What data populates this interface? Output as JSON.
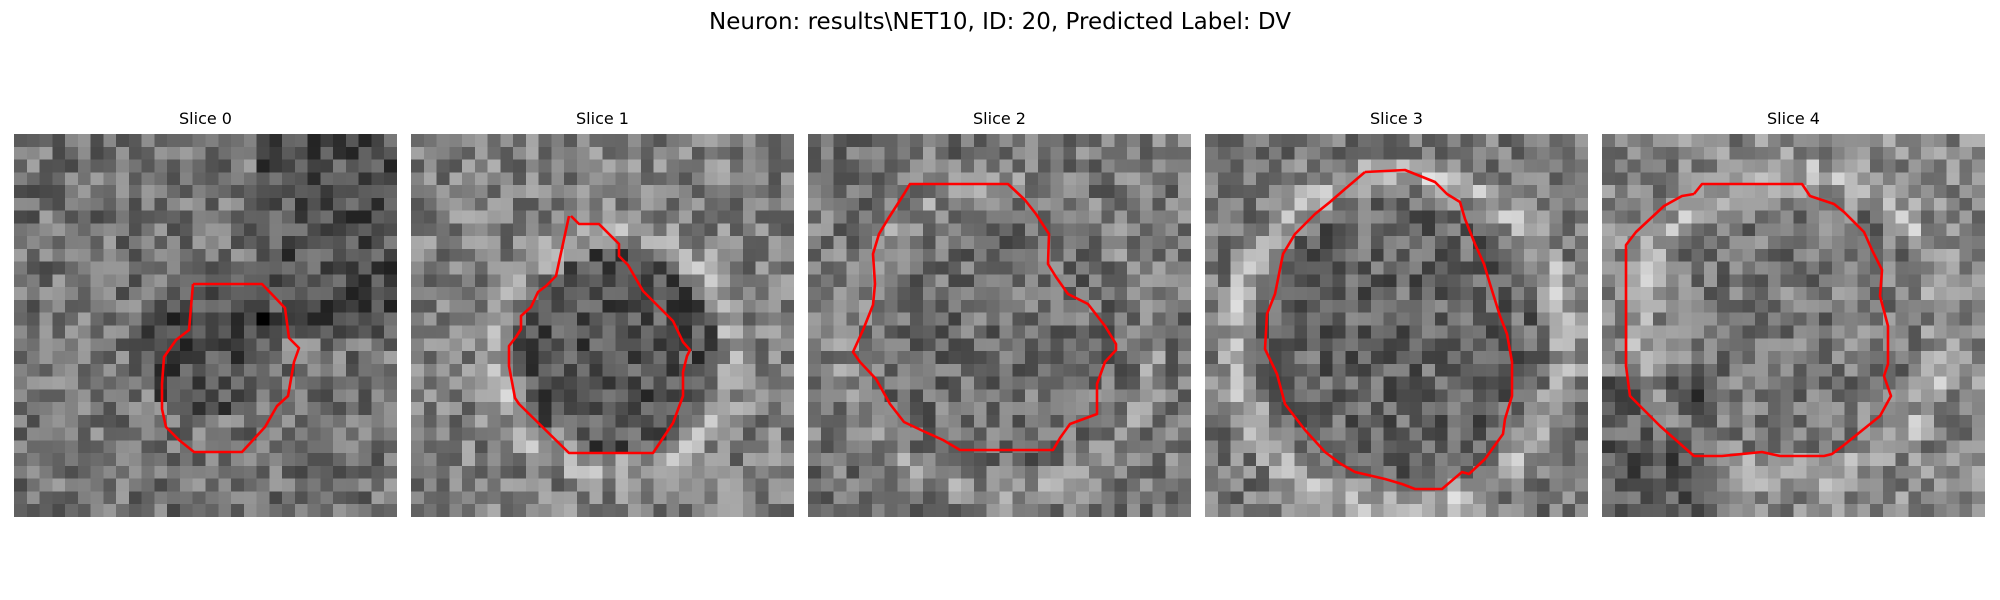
{
  "figure": {
    "title": "Neuron: results\\NET10, ID: 20, Predicted Label: DV"
  },
  "panels": [
    {
      "title": "Slice 0",
      "image": "grayscale microscopy patch",
      "overlay": "red neuron contour"
    },
    {
      "title": "Slice 1",
      "image": "grayscale microscopy patch",
      "overlay": "red neuron contour"
    },
    {
      "title": "Slice 2",
      "image": "grayscale microscopy patch",
      "overlay": "red neuron contour"
    },
    {
      "title": "Slice 3",
      "image": "grayscale microscopy patch",
      "overlay": "red neuron contour"
    },
    {
      "title": "Slice 4",
      "image": "grayscale microscopy patch",
      "overlay": "red neuron contour"
    }
  ],
  "colors": {
    "contour": "#ff0000",
    "background": "#ffffff"
  }
}
